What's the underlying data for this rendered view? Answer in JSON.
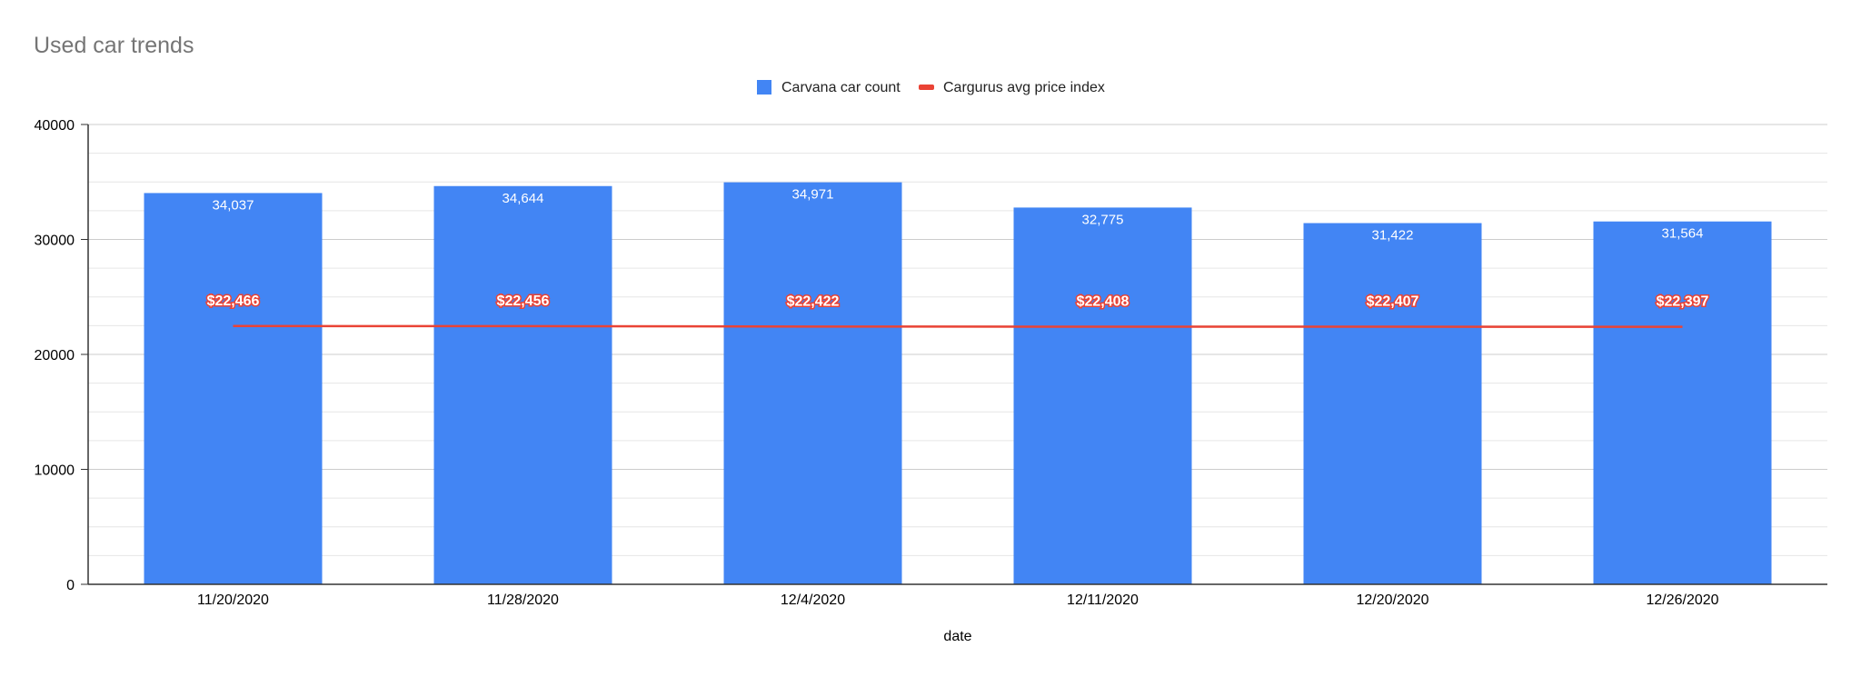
{
  "chart_data": {
    "type": "bar",
    "title": "Used car trends",
    "xlabel": "date",
    "ylabel": "",
    "categories": [
      "11/20/2020",
      "11/28/2020",
      "12/4/2020",
      "12/11/2020",
      "12/20/2020",
      "12/26/2020"
    ],
    "ylim": [
      0,
      40000
    ],
    "yticks": [
      "0",
      "10000",
      "20000",
      "30000",
      "40000"
    ],
    "grid": true,
    "legend_position": "top",
    "series": [
      {
        "name": "Carvana car count",
        "type": "bar",
        "color": "#4285f4",
        "values": [
          34037,
          34644,
          34971,
          32775,
          31422,
          31564
        ],
        "labels": [
          "34,037",
          "34,644",
          "34,971",
          "32,775",
          "31,422",
          "31,564"
        ]
      },
      {
        "name": "Cargurus avg price index",
        "type": "line",
        "color": "#ea4335",
        "values": [
          22466,
          22456,
          22422,
          22408,
          22407,
          22397
        ],
        "labels": [
          "$22,466",
          "$22,456",
          "$22,422",
          "$22,408",
          "$22,407",
          "$22,397"
        ]
      }
    ]
  }
}
